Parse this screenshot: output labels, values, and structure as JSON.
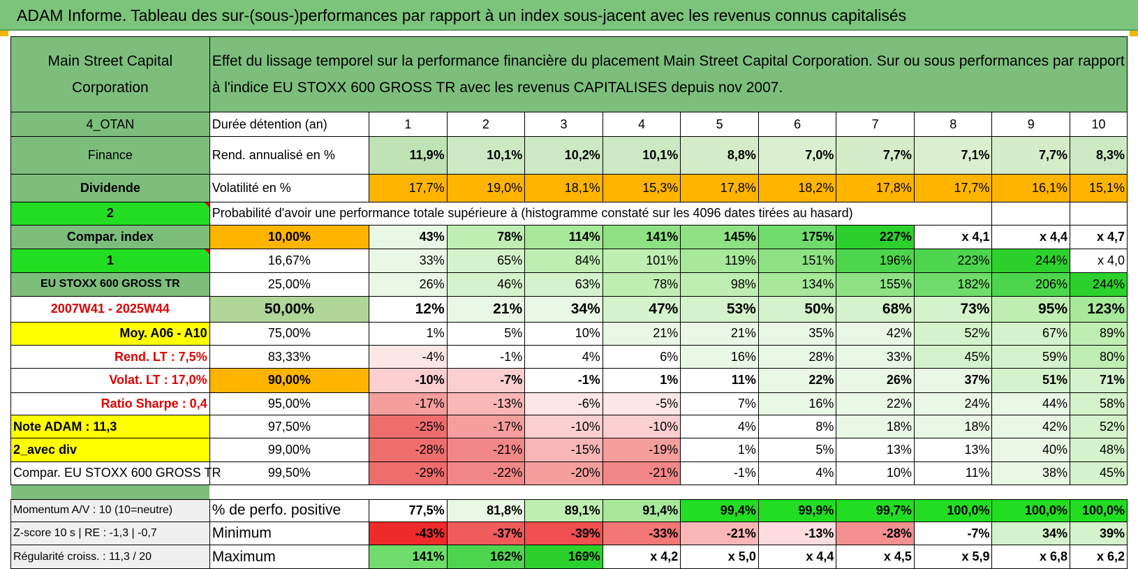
{
  "banner": {
    "title": "ADAM Informe. Tableau des sur-(sous-)performances par rapport à un index sous-jacent avec les revenus connus capitalisés"
  },
  "header": {
    "company": "Main Street Capital Corporation",
    "description": "Effet du lissage temporel sur la performance financière du placement Main Street Capital Corporation. Sur ou sous performances par rapport à l'indice EU STOXX 600 GROSS TR avec les revenus CAPITALISES depuis nov 2007."
  },
  "rows": {
    "holding": {
      "label": "4_OTAN",
      "name": "Durée détention (an)",
      "values": [
        "1",
        "2",
        "3",
        "4",
        "5",
        "6",
        "7",
        "8",
        "9",
        "10"
      ]
    },
    "return": {
      "label": "Finance",
      "name": "Rend. annualisé en %",
      "values": [
        "11,9%",
        "10,1%",
        "10,2%",
        "10,1%",
        "8,8%",
        "7,0%",
        "7,7%",
        "7,1%",
        "7,7%",
        "8,3%"
      ]
    },
    "volatility": {
      "label": "Dividende",
      "name": "Volatilité en %",
      "values": [
        "17,7%",
        "19,0%",
        "18,1%",
        "15,3%",
        "17,8%",
        "18,2%",
        "17,8%",
        "17,7%",
        "16,1%",
        "15,1%"
      ]
    },
    "probability": {
      "label": "2",
      "text": "Probabilité d'avoir une performance totale supérieure à (histogramme constaté sur les 4096 dates tirées au hasard)"
    }
  },
  "quantiles": [
    {
      "label": "Compar. index",
      "q": "10,00%",
      "values": [
        "43%",
        "78%",
        "114%",
        "141%",
        "145%",
        "175%",
        "227%",
        "x 4,1",
        "x 4,4",
        "x 4,7"
      ]
    },
    {
      "label": "1",
      "q": "16,67%",
      "values": [
        "33%",
        "65%",
        "84%",
        "101%",
        "119%",
        "151%",
        "196%",
        "223%",
        "244%",
        "x 4,0"
      ]
    },
    {
      "label": "EU STOXX 600 GROSS TR",
      "q": "25,00%",
      "values": [
        "26%",
        "46%",
        "63%",
        "78%",
        "98%",
        "134%",
        "155%",
        "182%",
        "206%",
        "244%"
      ]
    },
    {
      "label": "2007W41 - 2025W44",
      "q": "50,00%",
      "values": [
        "12%",
        "21%",
        "34%",
        "47%",
        "53%",
        "50%",
        "68%",
        "73%",
        "95%",
        "123%"
      ]
    },
    {
      "label": "Moy. A06 - A10",
      "q": "75,00%",
      "values": [
        "1%",
        "5%",
        "10%",
        "21%",
        "21%",
        "35%",
        "42%",
        "52%",
        "67%",
        "89%"
      ]
    },
    {
      "label": "Rend. LT :    7,5%",
      "q": "83,33%",
      "values": [
        "-4%",
        "-1%",
        "4%",
        "6%",
        "16%",
        "28%",
        "33%",
        "45%",
        "59%",
        "80%"
      ]
    },
    {
      "label": "Volat. LT :    17,0%",
      "q": "90,00%",
      "values": [
        "-10%",
        "-7%",
        "-1%",
        "1%",
        "11%",
        "22%",
        "26%",
        "37%",
        "51%",
        "71%"
      ]
    },
    {
      "label": "Ratio Sharpe :     0,4",
      "q": "95,00%",
      "values": [
        "-17%",
        "-13%",
        "-6%",
        "-5%",
        "7%",
        "16%",
        "22%",
        "24%",
        "44%",
        "58%"
      ]
    },
    {
      "label": "Note ADAM : 11,3",
      "q": "97,50%",
      "values": [
        "-25%",
        "-17%",
        "-10%",
        "-10%",
        "4%",
        "8%",
        "18%",
        "18%",
        "42%",
        "52%"
      ]
    },
    {
      "label": "2_avec div",
      "q": "99,00%",
      "values": [
        "-28%",
        "-21%",
        "-15%",
        "-19%",
        "1%",
        "5%",
        "13%",
        "13%",
        "40%",
        "48%"
      ]
    },
    {
      "label": "Compar. EU STOXX 600 GROSS TR",
      "q": "99,50%",
      "values": [
        "-29%",
        "-22%",
        "-20%",
        "-21%",
        "-1%",
        "4%",
        "10%",
        "11%",
        "38%",
        "45%"
      ]
    }
  ],
  "footer": [
    {
      "label": "Momentum A/V : 10 (10=neutre)",
      "name": "% de perfo. positive",
      "values": [
        "77,5%",
        "81,8%",
        "89,1%",
        "91,4%",
        "99,4%",
        "99,9%",
        "99,7%",
        "100,0%",
        "100,0%",
        "100,0%"
      ]
    },
    {
      "label": "Z-score 10 s | RE : -1,3 | -0,7",
      "name": "Minimum",
      "values": [
        "-43%",
        "-37%",
        "-39%",
        "-33%",
        "-21%",
        "-13%",
        "-28%",
        "-7%",
        "34%",
        "39%"
      ]
    },
    {
      "label": "Régularité croiss. : 11,3 / 20",
      "name": "Maximum",
      "values": [
        "141%",
        "162%",
        "169%",
        "x 4,2",
        "x 5,0",
        "x 4,4",
        "x 4,5",
        "x 5,9",
        "x 6,8",
        "x 6,2"
      ]
    }
  ],
  "colors": {
    "banner": "#7cc47c",
    "header": "#7cc47c",
    "label_green": "#7dbe7d",
    "bright_green": "#22dd22",
    "orange": "#ffb400",
    "yellow": "#ffff00",
    "red_text": "#e00000"
  }
}
